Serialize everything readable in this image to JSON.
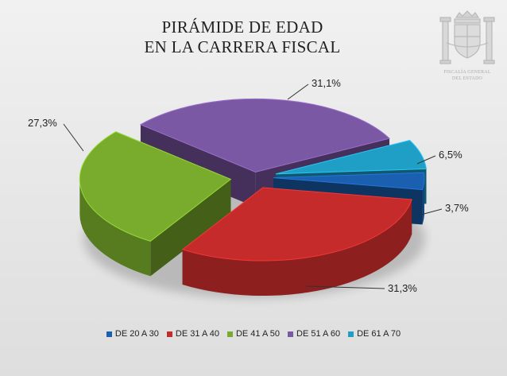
{
  "chart_data": {
    "type": "pie",
    "title_lines": [
      "PIRÁMIDE DE EDAD",
      "EN LA CARRERA FISCAL"
    ],
    "categories": [
      "DE 20 A 30",
      "DE 31 A 40",
      "DE 41 A 50",
      "DE 51 A 60",
      "DE 61 A 70"
    ],
    "values": [
      3.7,
      31.3,
      27.3,
      31.1,
      6.5
    ],
    "value_labels": [
      "3,7%",
      "31,3%",
      "27,3%",
      "31,1%",
      "6,5%"
    ],
    "colors": [
      "#1a5fb0",
      "#c52b2b",
      "#79ac2c",
      "#7b58a4",
      "#1f9fc6"
    ],
    "legend_position": "bottom",
    "style": "3d-exploded"
  },
  "emblem": {
    "icon": "coat-of-arms-icon",
    "org_lines": [
      "FISCALÍA GENERAL",
      "DEL ESTADO"
    ]
  }
}
